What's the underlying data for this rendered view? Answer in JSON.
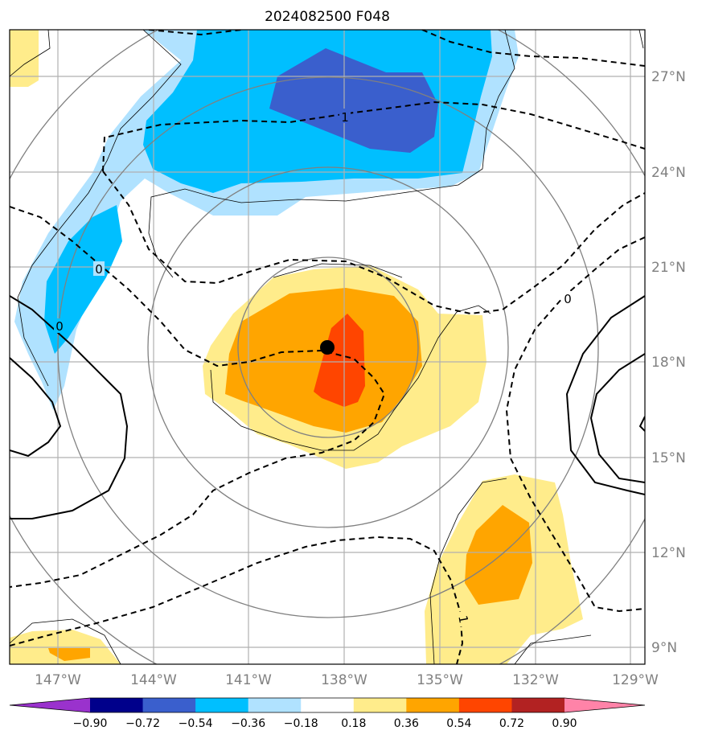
{
  "chart_data": {
    "type": "heatmap",
    "title": "2024082500 F048",
    "x_ticks": [
      "147°W",
      "144°W",
      "141°W",
      "138°W",
      "135°W",
      "132°W",
      "129°W"
    ],
    "x_tick_values": [
      -147,
      -144,
      -141,
      -138,
      -135,
      -132,
      -129
    ],
    "y_ticks": [
      "27°N",
      "24°N",
      "21°N",
      "18°N",
      "15°N",
      "12°N",
      "9°N"
    ],
    "y_tick_values": [
      27,
      24,
      21,
      18,
      15,
      12,
      9
    ],
    "xlim": [
      -148,
      -128
    ],
    "ylim": [
      8.5,
      28.5
    ],
    "grid": true,
    "storm_center": {
      "lon": -138.5,
      "lat": 18.5
    },
    "contour_labels": [
      {
        "text": "1",
        "lon": -138,
        "lat": 26.0
      },
      {
        "text": "0",
        "lon": -146.5,
        "lat": 20.5
      },
      {
        "text": "0",
        "lon": -147.3,
        "lat": 18.7
      },
      {
        "text": "0",
        "lon": -131.0,
        "lat": 19.5
      },
      {
        "text": "1",
        "lon": -134.3,
        "lat": 9.5
      }
    ],
    "colorbar": {
      "levels": [
        "−0.90",
        "−0.72",
        "−0.54",
        "−0.36",
        "−0.18",
        "0.18",
        "0.36",
        "0.54",
        "0.72",
        "0.90"
      ],
      "colors": [
        "#9a32cd",
        "#00008b",
        "#3a5fcd",
        "#00bfff",
        "#b0e2ff",
        "#ffffff",
        "#ffec8b",
        "#ffa500",
        "#ff4500",
        "#b22222",
        "#ff83a8"
      ]
    }
  }
}
